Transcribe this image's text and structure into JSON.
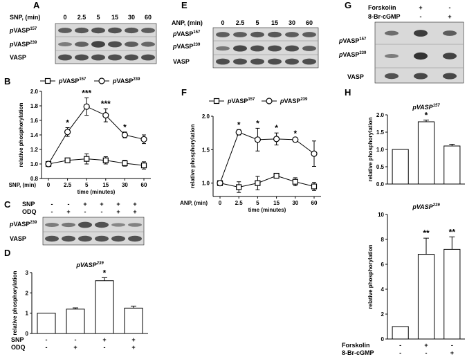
{
  "panels": {
    "A": {
      "letter": "A",
      "header_label": "SNP, (min)",
      "header_values": [
        "0",
        "2.5",
        "5",
        "15",
        "30",
        "60"
      ],
      "rows": [
        {
          "p": "p",
          "name": "VASP",
          "sup": "157"
        },
        {
          "p": "p",
          "name": "VASP",
          "sup": "239"
        },
        {
          "p": "",
          "name": "VASP",
          "sup": ""
        }
      ]
    },
    "B": {
      "letter": "B"
    },
    "C": {
      "letter": "C",
      "conditions": [
        {
          "label": "SNP",
          "values": [
            "-",
            "-",
            "+",
            "+",
            "+",
            "+"
          ]
        },
        {
          "label": "ODQ",
          "values": [
            "-",
            "+",
            "-",
            "-",
            "+",
            "+"
          ]
        }
      ],
      "rows": [
        {
          "p": "p",
          "name": "VASP",
          "sup": "239"
        },
        {
          "p": "",
          "name": "VASP",
          "sup": ""
        }
      ]
    },
    "D": {
      "letter": "D"
    },
    "E": {
      "letter": "E",
      "header_label": "ANP, (min)",
      "header_values": [
        "0",
        "2.5",
        "5",
        "15",
        "30",
        "60"
      ],
      "rows": [
        {
          "p": "p",
          "name": "VASP",
          "sup": "157"
        },
        {
          "p": "p",
          "name": "VASP",
          "sup": "239"
        },
        {
          "p": "",
          "name": "VASP",
          "sup": ""
        }
      ]
    },
    "F": {
      "letter": "F"
    },
    "G": {
      "letter": "G",
      "conditions": [
        {
          "label": "Forskolin",
          "values": [
            "-",
            "+",
            "-"
          ]
        },
        {
          "label": "8-Br-cGMP",
          "values": [
            "-",
            "-",
            "+"
          ]
        }
      ],
      "rows": [
        {
          "p": "p",
          "name": "VASP",
          "sup": "157"
        },
        {
          "p": "p",
          "name": "VASP",
          "sup": "239"
        },
        {
          "p": "",
          "name": "VASP",
          "sup": ""
        }
      ]
    },
    "H": {
      "letter": "H"
    }
  },
  "chart_data": [
    {
      "id": "B",
      "type": "line",
      "title": "",
      "x": [
        "0",
        "2.5",
        "5",
        "15",
        "30",
        "60"
      ],
      "xlabel": "time (minutes)",
      "xlabel_prefix": "SNP, (min)",
      "ylabel": "relative phosphorylation",
      "ylim": [
        0.8,
        2.0
      ],
      "yticks": [
        "0.8",
        "1.0",
        "1.2",
        "1.4",
        "1.6",
        "1.8",
        "2.0"
      ],
      "legend_position": "top",
      "series": [
        {
          "name_p": "p",
          "name": "VASP",
          "sup": "157",
          "marker": "square",
          "values": [
            1.0,
            1.05,
            1.07,
            1.05,
            1.01,
            0.98
          ],
          "errors": [
            0.02,
            0.03,
            0.07,
            0.05,
            0.04,
            0.05
          ],
          "annotations": [
            "",
            "",
            "",
            "",
            "",
            ""
          ]
        },
        {
          "name_p": "p",
          "name": "VASP",
          "sup": "239",
          "marker": "circle",
          "values": [
            1.0,
            1.44,
            1.79,
            1.67,
            1.4,
            1.34
          ],
          "errors": [
            0.02,
            0.06,
            0.12,
            0.09,
            0.04,
            0.06
          ],
          "annotations": [
            "",
            "*",
            "***",
            "***",
            "*",
            ""
          ]
        }
      ]
    },
    {
      "id": "D",
      "type": "bar",
      "title_p": "p",
      "title_name": "VASP",
      "title_sup": "239",
      "categories": [
        "1",
        "2",
        "3",
        "4"
      ],
      "values": [
        1.0,
        1.2,
        2.6,
        1.25
      ],
      "errors": [
        0.0,
        0.06,
        0.15,
        0.1
      ],
      "annotations": [
        "",
        "",
        "*",
        ""
      ],
      "ylabel": "relative phosphorylation",
      "ylim": [
        0,
        3
      ],
      "yticks": [
        "0",
        "1",
        "2",
        "3"
      ],
      "conditions": [
        {
          "label": "SNP",
          "values": [
            "-",
            "-",
            "+",
            "+"
          ]
        },
        {
          "label": "ODQ",
          "values": [
            "-",
            "+",
            "-",
            "+"
          ]
        }
      ]
    },
    {
      "id": "F",
      "type": "line",
      "title": "",
      "x": [
        "0",
        "2.5",
        "5",
        "15",
        "30",
        "60"
      ],
      "xlabel": "time (minutes)",
      "xlabel_prefix": "ANP, (min)",
      "ylabel": "relative phosphorylation",
      "ylim": [
        0.8,
        2.0
      ],
      "yticks": [
        "1.0",
        "1.5",
        "2.0"
      ],
      "legend_position": "top",
      "series": [
        {
          "name_p": "p",
          "name": "VASP",
          "sup": "157",
          "marker": "square",
          "values": [
            1.0,
            0.94,
            1.0,
            1.11,
            1.02,
            0.95
          ],
          "errors": [
            0.02,
            0.08,
            0.1,
            0.03,
            0.06,
            0.06
          ],
          "annotations": [
            "",
            "",
            "",
            "",
            "",
            ""
          ]
        },
        {
          "name_p": "p",
          "name": "VASP",
          "sup": "239",
          "marker": "circle",
          "values": [
            1.0,
            1.76,
            1.65,
            1.66,
            1.65,
            1.44
          ],
          "errors": [
            0.02,
            0.04,
            0.17,
            0.09,
            0.02,
            0.19
          ],
          "annotations": [
            "",
            "*",
            "*",
            "*",
            "*",
            ""
          ]
        }
      ]
    },
    {
      "id": "H1",
      "type": "bar",
      "title_p": "p",
      "title_name": "VASP",
      "title_sup": "157",
      "categories": [
        "1",
        "2",
        "3"
      ],
      "values": [
        1.0,
        1.8,
        1.1
      ],
      "errors": [
        0.0,
        0.05,
        0.05
      ],
      "annotations": [
        "",
        "*",
        ""
      ],
      "ylabel": "relative phosphorylation",
      "ylim": [
        0,
        2.0
      ],
      "yticks": [
        "0.0",
        "0.5",
        "1.0",
        "1.5",
        "2.0"
      ]
    },
    {
      "id": "H2",
      "type": "bar",
      "title_p": "p",
      "title_name": "VASP",
      "title_sup": "239",
      "categories": [
        "1",
        "2",
        "3"
      ],
      "values": [
        1.0,
        6.8,
        7.2
      ],
      "errors": [
        0.0,
        1.3,
        1.0
      ],
      "annotations": [
        "",
        "**",
        "**"
      ],
      "ylabel": "relative phosphorylation",
      "ylim": [
        0,
        10
      ],
      "yticks": [
        "0",
        "2",
        "4",
        "6",
        "8",
        "10"
      ],
      "conditions": [
        {
          "label": "Forskolin",
          "values": [
            "-",
            "+",
            "-"
          ]
        },
        {
          "label": "8-Br-cGMP",
          "values": [
            "-",
            "-",
            "+"
          ]
        }
      ]
    }
  ]
}
